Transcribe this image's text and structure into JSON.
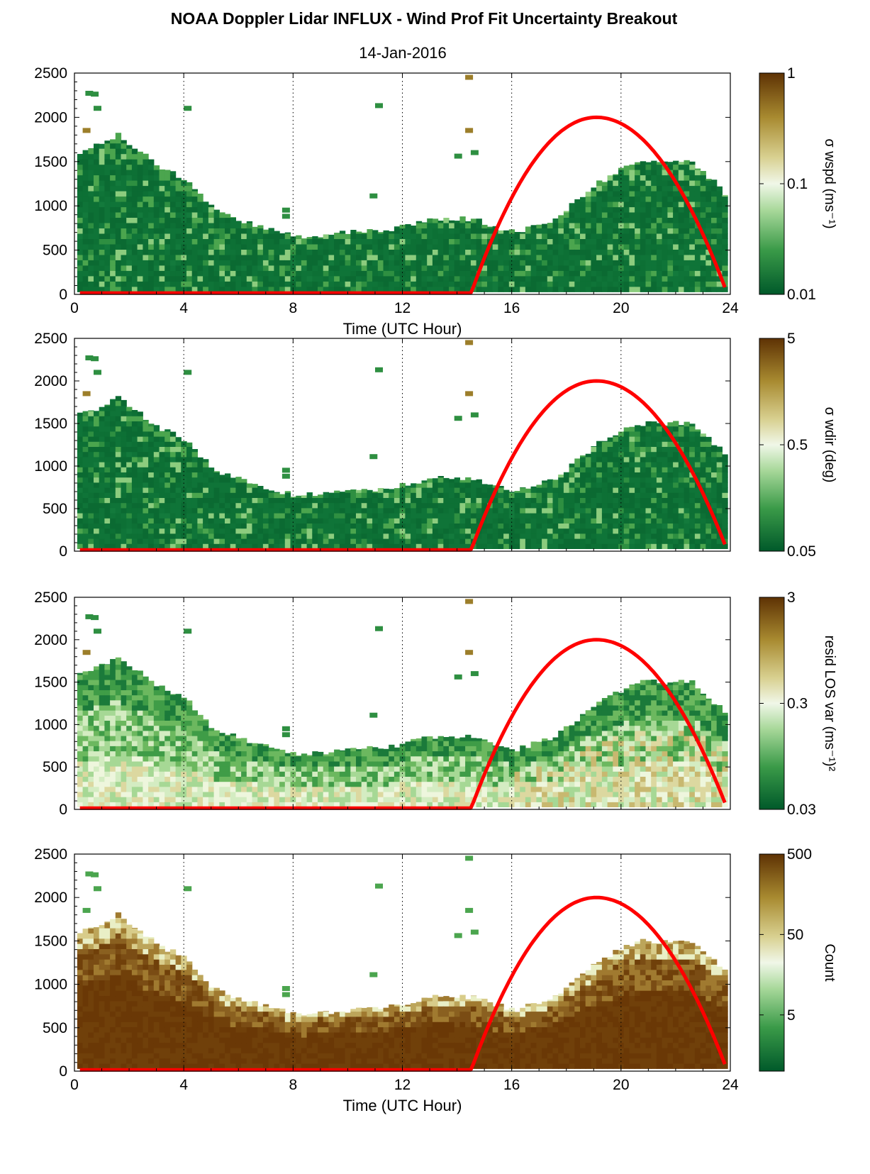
{
  "title": "NOAA Doppler Lidar INFLUX - Wind Prof Fit Uncertainty Breakout",
  "subtitle": "14-Jan-2016",
  "colors": {
    "dark_green": "#0b6a32",
    "mid_green": "#3fa045",
    "light_green": "#b8e0a8",
    "pale": "#f2f7e6",
    "tan": "#c8b860",
    "olive": "#9c7e2a",
    "dark_brown": "#6a3a08",
    "solar_curve": "#ff0000"
  },
  "chart_data": [
    {
      "type": "heatmap",
      "title": "NOAA Doppler Lidar INFLUX - Wind Prof Fit Uncertainty Breakout",
      "subtitle": "14-Jan-2016",
      "xlabel": "Time (UTC Hour)",
      "ylabel": "",
      "xlim": [
        0,
        24
      ],
      "ylim": [
        0,
        2500
      ],
      "xticks": [
        0,
        4,
        8,
        12,
        16,
        20,
        24
      ],
      "xtick_labels": [
        "0",
        "4",
        "8",
        "12",
        "16",
        "20",
        "24"
      ],
      "yticks": [
        0,
        500,
        1000,
        1500,
        2000,
        2500
      ],
      "ytick_labels": [
        "0",
        "500",
        "1000",
        "1500",
        "2000",
        "2500"
      ],
      "grid": "dotted vertical lines at x ticks",
      "colorbar": {
        "label": "σ wspd (ms⁻¹)",
        "scale": "log",
        "ticks": [
          0.01,
          0.1,
          1
        ],
        "tick_labels": [
          "0.01",
          "0.1",
          "1"
        ]
      },
      "dominant": "dark_green",
      "profile_top": {
        "x": [
          0.2,
          1.5,
          3.0,
          4.0,
          5.0,
          6.5,
          8.0,
          10.0,
          11.5,
          13.0,
          14.5,
          16.0,
          17.5,
          19.0,
          20.5,
          22.5,
          23.7
        ],
        "y": [
          1600,
          1800,
          1450,
          1300,
          950,
          780,
          650,
          700,
          740,
          860,
          850,
          700,
          850,
          1250,
          1500,
          1500,
          1150
        ]
      },
      "solar_elevation_curve": {
        "x": [
          14.5,
          19.1,
          23.8
        ],
        "y": [
          0,
          2000,
          80
        ]
      }
    },
    {
      "type": "heatmap",
      "xlim": [
        0,
        24
      ],
      "ylim": [
        0,
        2500
      ],
      "xticks": [
        0,
        4,
        8,
        12,
        16,
        20,
        24
      ],
      "yticks": [
        0,
        500,
        1000,
        1500,
        2000,
        2500
      ],
      "ytick_labels": [
        "0",
        "500",
        "1000",
        "1500",
        "2000",
        "2500"
      ],
      "colorbar": {
        "label": "σ wdir (deg)",
        "scale": "log",
        "ticks": [
          0.05,
          0.5,
          5
        ],
        "tick_labels": [
          "0.05",
          "0.5",
          "5"
        ]
      },
      "dominant": "dark_green",
      "profile_top": {
        "x": [
          0.2,
          1.5,
          3.0,
          4.0,
          5.0,
          6.5,
          8.0,
          10.0,
          11.5,
          13.0,
          14.5,
          16.0,
          17.5,
          19.0,
          20.5,
          22.5,
          23.7
        ],
        "y": [
          1600,
          1800,
          1450,
          1300,
          950,
          780,
          650,
          700,
          740,
          860,
          850,
          700,
          850,
          1250,
          1500,
          1500,
          1150
        ]
      },
      "solar_elevation_curve": {
        "x": [
          14.5,
          19.1,
          23.8
        ],
        "y": [
          0,
          2000,
          80
        ]
      }
    },
    {
      "type": "heatmap",
      "xlim": [
        0,
        24
      ],
      "ylim": [
        0,
        2500
      ],
      "xticks": [
        0,
        4,
        8,
        12,
        16,
        20,
        24
      ],
      "yticks": [
        0,
        500,
        1000,
        1500,
        2000,
        2500
      ],
      "ytick_labels": [
        "0",
        "500",
        "1000",
        "1500",
        "2000",
        "2500"
      ],
      "colorbar": {
        "label": "resid LOS var (ms⁻¹)²",
        "scale": "log",
        "ticks": [
          0.03,
          0.3,
          3
        ],
        "tick_labels": [
          "0.03",
          "0.3",
          "3"
        ]
      },
      "dominant": "mixed_green_pale",
      "profile_top": {
        "x": [
          0.2,
          1.5,
          3.0,
          4.0,
          5.0,
          6.5,
          8.0,
          10.0,
          11.5,
          13.0,
          14.5,
          16.0,
          17.5,
          19.0,
          20.5,
          22.5,
          23.7
        ],
        "y": [
          1600,
          1800,
          1450,
          1300,
          950,
          780,
          650,
          700,
          740,
          860,
          850,
          700,
          850,
          1250,
          1500,
          1500,
          1150
        ]
      },
      "solar_elevation_curve": {
        "x": [
          14.5,
          19.1,
          23.8
        ],
        "y": [
          0,
          2000,
          80
        ]
      }
    },
    {
      "type": "heatmap",
      "xlabel": "Time (UTC Hour)",
      "xlim": [
        0,
        24
      ],
      "ylim": [
        0,
        2500
      ],
      "xticks": [
        0,
        4,
        8,
        12,
        16,
        20,
        24
      ],
      "xtick_labels": [
        "0",
        "4",
        "8",
        "12",
        "16",
        "20",
        "24"
      ],
      "yticks": [
        0,
        500,
        1000,
        1500,
        2000,
        2500
      ],
      "ytick_labels": [
        "0",
        "500",
        "1000",
        "1500",
        "2000",
        "2500"
      ],
      "colorbar": {
        "label": "Count",
        "scale": "log",
        "ticks": [
          5,
          50,
          500
        ],
        "tick_labels": [
          "5",
          "50",
          "500"
        ]
      },
      "dominant": "dark_brown",
      "profile_top": {
        "x": [
          0.2,
          1.5,
          3.0,
          4.0,
          5.0,
          6.5,
          8.0,
          10.0,
          11.5,
          13.0,
          14.5,
          16.0,
          17.5,
          19.0,
          20.5,
          22.5,
          23.7
        ],
        "y": [
          1600,
          1800,
          1450,
          1300,
          950,
          780,
          650,
          700,
          740,
          860,
          850,
          700,
          850,
          1250,
          1500,
          1500,
          1150
        ]
      },
      "solar_elevation_curve": {
        "x": [
          14.5,
          19.1,
          23.8
        ],
        "y": [
          0,
          2000,
          80
        ]
      }
    }
  ]
}
